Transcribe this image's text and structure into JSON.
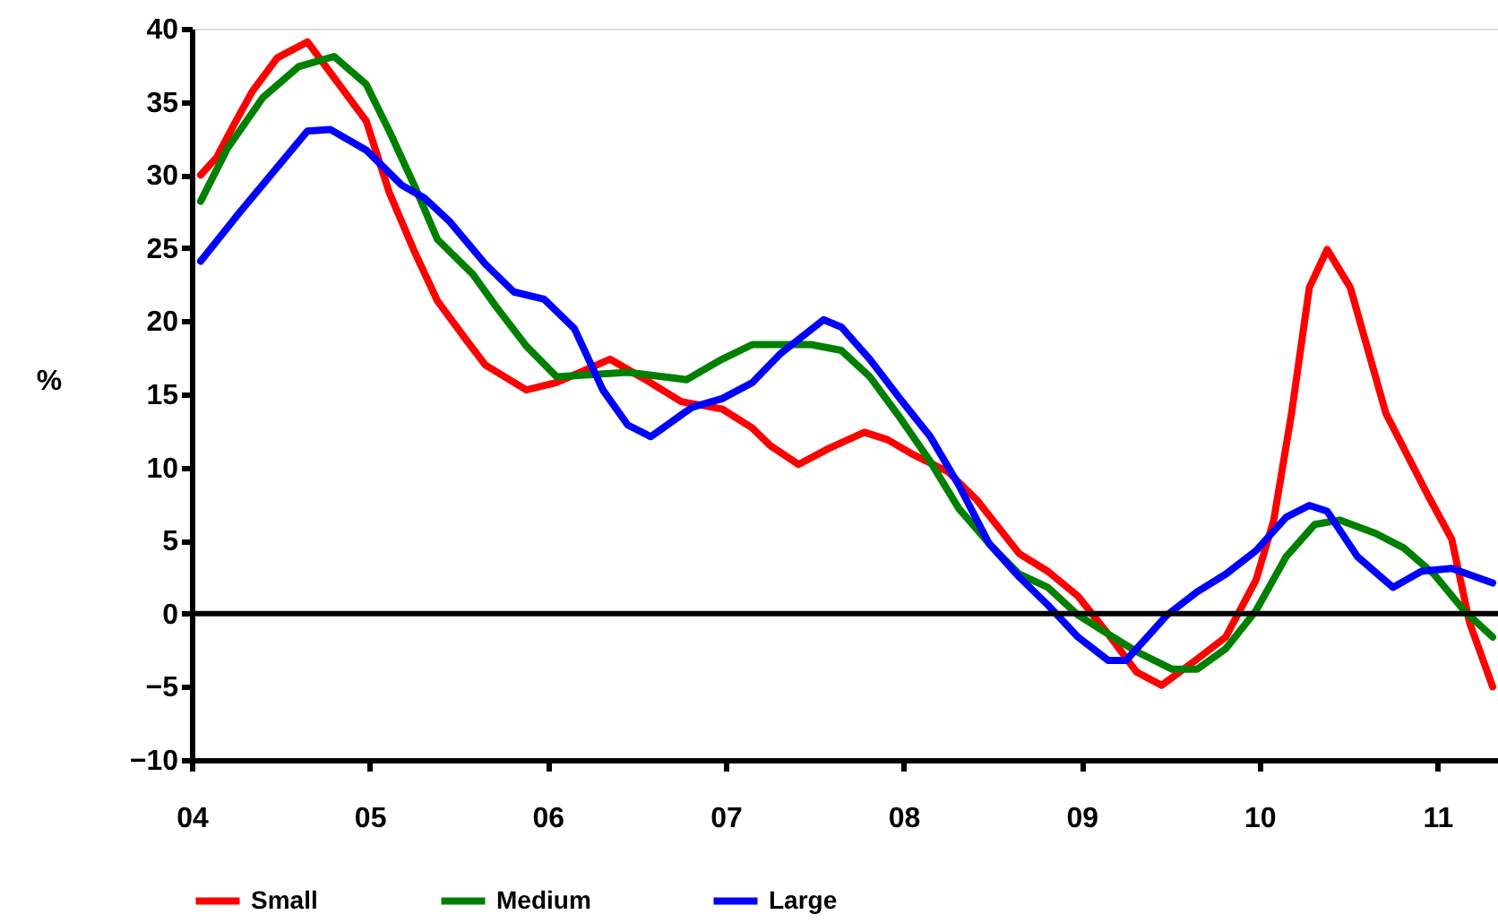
{
  "chart_data": {
    "type": "line",
    "ylabel": "%",
    "xlim": [
      4,
      11.34
    ],
    "xticks": [
      {
        "value": 4,
        "label": "04"
      },
      {
        "value": 5,
        "label": "05"
      },
      {
        "value": 6,
        "label": "06"
      },
      {
        "value": 7,
        "label": "07"
      },
      {
        "value": 8,
        "label": "08"
      },
      {
        "value": 9,
        "label": "09"
      },
      {
        "value": 10,
        "label": "10"
      },
      {
        "value": 11,
        "label": "11"
      }
    ],
    "ylim": [
      -10,
      40
    ],
    "yticks": [
      -10,
      -5,
      0,
      5,
      10,
      15,
      20,
      25,
      30,
      35,
      40
    ],
    "grid": false,
    "legend": "bottom",
    "marker": "none",
    "line_style": "solid",
    "ref_lines": [
      {
        "axis": "y",
        "value": 0,
        "color": "#000000"
      }
    ],
    "series": [
      {
        "name": "Small",
        "color": "#ff0000",
        "x": [
          4.05,
          4.14,
          4.24,
          4.34,
          4.48,
          4.65,
          4.98,
          5.11,
          5.25,
          5.38,
          5.55,
          5.65,
          5.88,
          6.05,
          6.35,
          6.55,
          6.75,
          6.98,
          7.15,
          7.25,
          7.41,
          7.58,
          7.78,
          7.91,
          8.05,
          8.25,
          8.41,
          8.65,
          8.81,
          8.98,
          9.15,
          9.31,
          9.45,
          9.65,
          9.81,
          9.98,
          10.08,
          10.18,
          10.28,
          10.38,
          10.51,
          10.71,
          10.95,
          11.08,
          11.18,
          11.31
        ],
        "values": [
          30,
          31.2,
          33.5,
          35.7,
          38,
          39.1,
          33.7,
          28.8,
          24.8,
          21.4,
          18.6,
          17,
          15.3,
          15.8,
          17.4,
          16,
          14.5,
          14,
          12.7,
          11.5,
          10.2,
          11.3,
          12.4,
          11.9,
          10.9,
          9.7,
          7.8,
          4.1,
          2.9,
          1.2,
          -1.4,
          -4,
          -4.9,
          -3.1,
          -1.6,
          2.3,
          6.4,
          13.7,
          22.3,
          24.9,
          22.3,
          13.7,
          8,
          5.1,
          -0.6,
          -5
        ]
      },
      {
        "name": "Medium",
        "color": "#008000",
        "x": [
          4.05,
          4.2,
          4.4,
          4.6,
          4.8,
          4.98,
          5.11,
          5.25,
          5.38,
          5.58,
          5.71,
          5.88,
          6.05,
          6.45,
          6.78,
          6.98,
          7.15,
          7.48,
          7.65,
          7.81,
          7.98,
          8.15,
          8.31,
          8.48,
          8.65,
          8.81,
          8.98,
          9.15,
          9.31,
          9.51,
          9.65,
          9.81,
          9.98,
          10.15,
          10.31,
          10.45,
          10.65,
          10.81,
          10.98,
          11.15,
          11.31
        ],
        "values": [
          28.2,
          31.8,
          35.3,
          37.4,
          38.1,
          36.2,
          33,
          29.3,
          25.6,
          23.2,
          21,
          18.3,
          16.2,
          16.5,
          16,
          17.4,
          18.4,
          18.4,
          18,
          16.2,
          13.4,
          10.4,
          7.2,
          4.8,
          2.7,
          1.8,
          -0.1,
          -1.4,
          -2.6,
          -3.8,
          -3.8,
          -2.4,
          0.2,
          3.9,
          6.1,
          6.4,
          5.5,
          4.5,
          2.7,
          0.2,
          -1.6
        ]
      },
      {
        "name": "Large",
        "color": "#0000ff",
        "x": [
          4.05,
          4.26,
          4.65,
          4.78,
          4.98,
          5.18,
          5.31,
          5.45,
          5.65,
          5.81,
          5.98,
          6.15,
          6.31,
          6.45,
          6.58,
          6.81,
          6.98,
          7.15,
          7.31,
          7.55,
          7.65,
          7.81,
          7.98,
          8.15,
          8.31,
          8.48,
          8.65,
          8.81,
          8.98,
          9.15,
          9.25,
          9.48,
          9.65,
          9.81,
          9.98,
          10.15,
          10.28,
          10.38,
          10.55,
          10.75,
          10.91,
          11.08,
          11.31
        ],
        "values": [
          24.1,
          27.3,
          33,
          33.1,
          31.7,
          29.3,
          28.4,
          26.8,
          23.9,
          22,
          21.5,
          19.5,
          15.3,
          12.9,
          12.1,
          14.1,
          14.7,
          15.8,
          17.8,
          20.1,
          19.6,
          17.4,
          14.7,
          12.1,
          8.8,
          4.8,
          2.5,
          0.6,
          -1.6,
          -3.2,
          -3.2,
          -0.1,
          1.5,
          2.7,
          4.3,
          6.6,
          7.4,
          7,
          3.9,
          1.8,
          2.9,
          3.1,
          2.1
        ]
      }
    ]
  }
}
